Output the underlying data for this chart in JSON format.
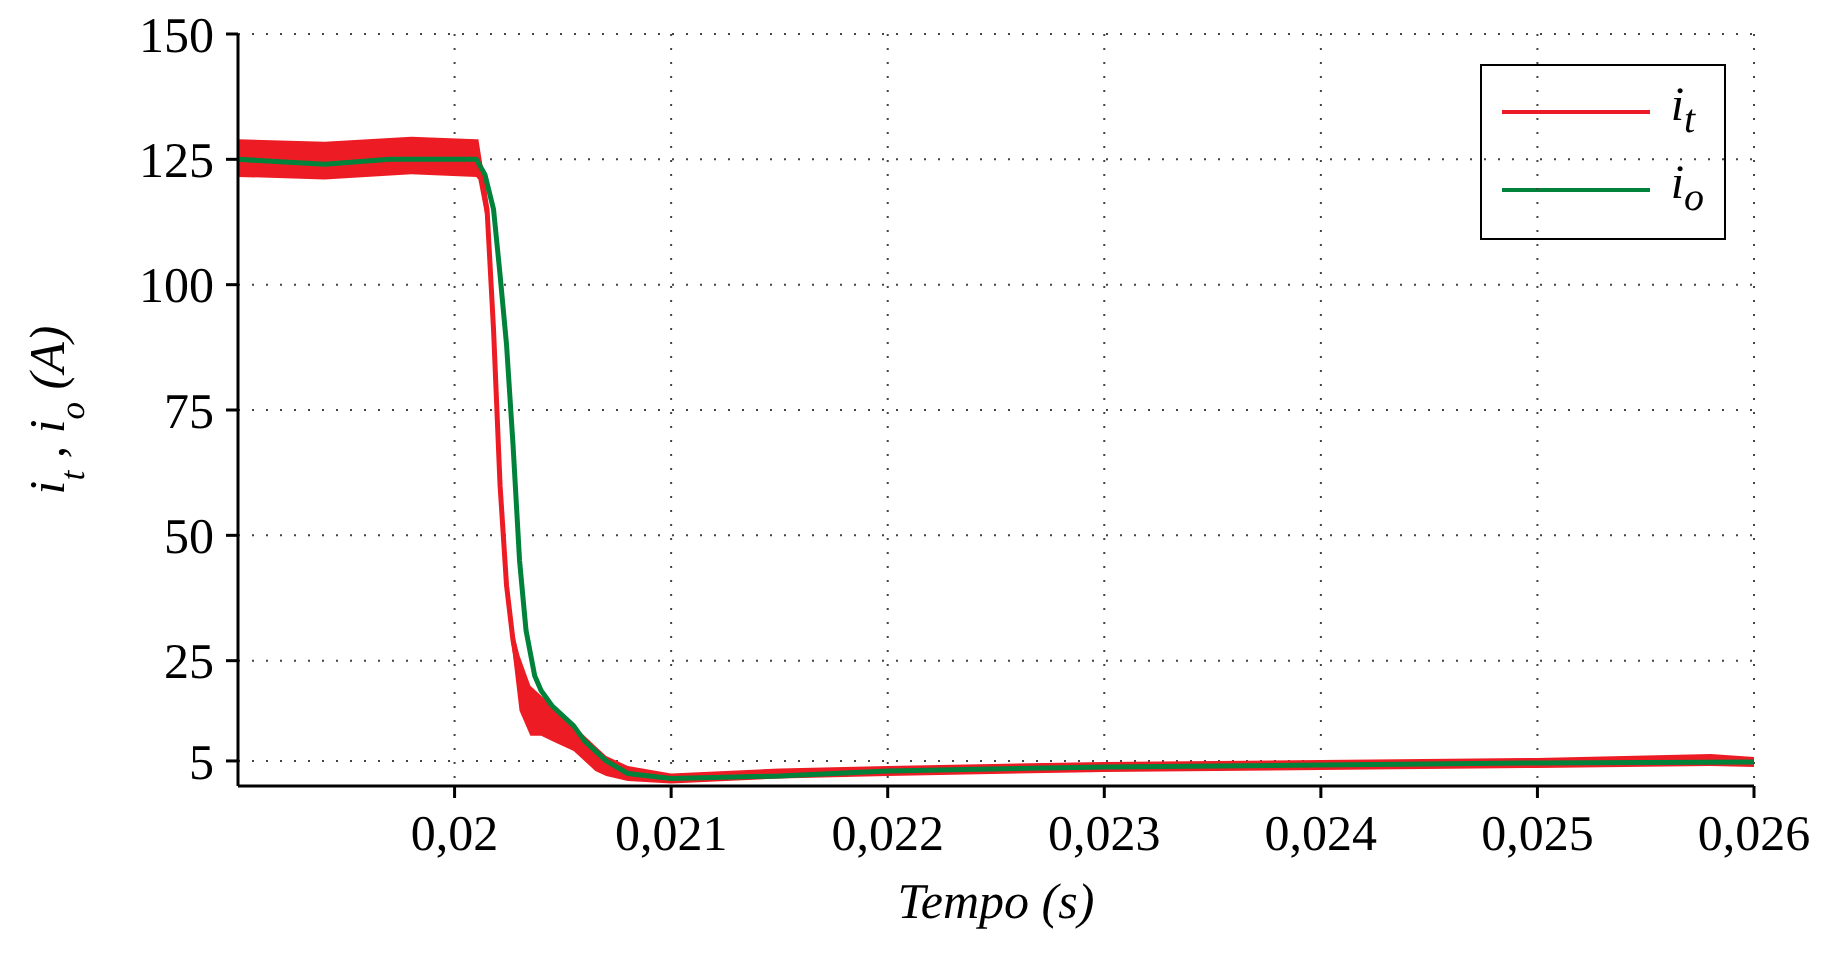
{
  "chart_data": {
    "type": "line",
    "xlabel": "Tempo (s)",
    "ylabel": "i$_{t}$, i$_{o}$ (A)",
    "xlim": [
      0.019,
      0.026
    ],
    "xticks": [
      {
        "value": 0.02,
        "label": "0,02"
      },
      {
        "value": 0.021,
        "label": "0,021"
      },
      {
        "value": 0.022,
        "label": "0,022"
      },
      {
        "value": 0.023,
        "label": "0,023"
      },
      {
        "value": 0.024,
        "label": "0,024"
      },
      {
        "value": 0.025,
        "label": "0,025"
      },
      {
        "value": 0.026,
        "label": "0,026"
      }
    ],
    "ylim": [
      0,
      150
    ],
    "yticks": [
      5,
      25,
      50,
      75,
      100,
      125,
      150
    ],
    "grid": true,
    "legend": "top right",
    "series": [
      {
        "name": "i$_{t}$",
        "color": "#ed1c24",
        "x": [
          0.019,
          0.0194,
          0.0198,
          0.0201,
          0.02011,
          0.02015,
          0.02018,
          0.02021,
          0.02024,
          0.02027,
          0.0203,
          0.02035,
          0.0204,
          0.02045,
          0.0205,
          0.02055,
          0.0206,
          0.02065,
          0.0207,
          0.0208,
          0.021,
          0.0215,
          0.022,
          0.023,
          0.024,
          0.025,
          0.0258,
          0.026
        ],
        "values": [
          125,
          124.5,
          125.5,
          125,
          125,
          115,
          91,
          60,
          40,
          29,
          22,
          16,
          15,
          14,
          12,
          10,
          8,
          6,
          4,
          2.5,
          1.5,
          2.5,
          3,
          3.8,
          4.2,
          4.6,
          5.2,
          4.8
        ],
        "lower": [
          121.5,
          121,
          122,
          121.5,
          121,
          112,
          88,
          56,
          37,
          26,
          15,
          10,
          10,
          9,
          8,
          7,
          5,
          3,
          2,
          1,
          0.5,
          1.5,
          2,
          2.8,
          3.2,
          3.6,
          4,
          3.8
        ],
        "upper": [
          129,
          128.5,
          129.5,
          129,
          129,
          118,
          94,
          64,
          43,
          31,
          26,
          20,
          18,
          16,
          14,
          12,
          10,
          8,
          6,
          4,
          2.5,
          3.5,
          4,
          4.8,
          5.2,
          5.6,
          6.4,
          5.8
        ]
      },
      {
        "name": "i$_{o}$",
        "color": "#00823b",
        "x": [
          0.019,
          0.0194,
          0.0197,
          0.0201,
          0.02014,
          0.02018,
          0.02021,
          0.02024,
          0.02027,
          0.0203,
          0.02033,
          0.02037,
          0.0204,
          0.02045,
          0.0205,
          0.02055,
          0.0206,
          0.0207,
          0.0208,
          0.021,
          0.0215,
          0.022,
          0.023,
          0.024,
          0.025,
          0.026
        ],
        "values": [
          125,
          124,
          125,
          125,
          122,
          115,
          102,
          88,
          68,
          45,
          31,
          22,
          19,
          16,
          14,
          12,
          9,
          5,
          2.5,
          1.5,
          2,
          3,
          3.8,
          4.2,
          4.6,
          4.8
        ]
      }
    ]
  }
}
